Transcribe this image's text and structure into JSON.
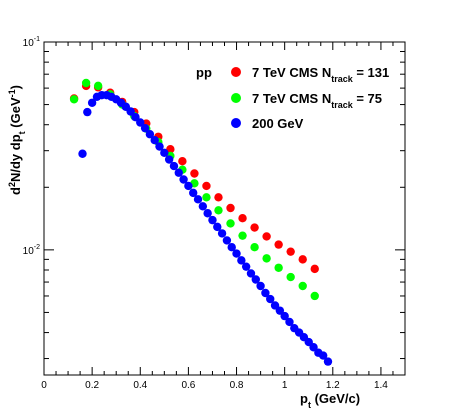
{
  "chart_data": {
    "type": "scatter",
    "title": "",
    "xlabel": {
      "main": "p",
      "sub": "t",
      "rest": " (GeV/c)"
    },
    "ylabel": {
      "t1": "d",
      "sup1": "2",
      "t2": "N/dy dp",
      "sub": "t",
      "t3": " (GeV",
      "sup2": "-1",
      "t4": ")"
    },
    "xlim": [
      0,
      1.5
    ],
    "ylim": [
      0.0025,
      0.1
    ],
    "yscale": "log",
    "x_ticks": [
      {
        "value": 0,
        "label": "0"
      },
      {
        "value": 0.2,
        "label": "0.2"
      },
      {
        "value": 0.4,
        "label": "0.4"
      },
      {
        "value": 0.6,
        "label": "0.6"
      },
      {
        "value": 0.8,
        "label": "0.8"
      },
      {
        "value": 1.0,
        "label": "1"
      },
      {
        "value": 1.2,
        "label": "1.2"
      },
      {
        "value": 1.4,
        "label": "1.4"
      }
    ],
    "y_ticks": [
      {
        "value": 0.1,
        "base": "10",
        "exp": "-1"
      },
      {
        "value": 0.01,
        "base": "10",
        "exp": "-2"
      }
    ],
    "legend_header": "pp",
    "legend_position": "top-right",
    "series": [
      {
        "name_parts": {
          "main": "7 TeV CMS  N",
          "sub": "track",
          "rest": " = 131"
        },
        "color": "#ff0000",
        "points": [
          [
            0.125,
            0.0535
          ],
          [
            0.175,
            0.0615
          ],
          [
            0.225,
            0.0605
          ],
          [
            0.275,
            0.057
          ],
          [
            0.325,
            0.0515
          ],
          [
            0.375,
            0.046
          ],
          [
            0.425,
            0.0405
          ],
          [
            0.475,
            0.035
          ],
          [
            0.525,
            0.0305
          ],
          [
            0.575,
            0.0267
          ],
          [
            0.625,
            0.0233
          ],
          [
            0.675,
            0.0203
          ],
          [
            0.725,
            0.0179
          ],
          [
            0.775,
            0.0159
          ],
          [
            0.825,
            0.0142
          ],
          [
            0.875,
            0.0128
          ],
          [
            0.925,
            0.0116
          ],
          [
            0.975,
            0.0106
          ],
          [
            1.025,
            0.0098
          ],
          [
            1.075,
            0.009
          ],
          [
            1.125,
            0.0081
          ]
        ]
      },
      {
        "name_parts": {
          "main": "7 TeV CMS  N",
          "sub": "track",
          "rest": " = 75"
        },
        "color": "#00ff00",
        "points": [
          [
            0.125,
            0.053
          ],
          [
            0.175,
            0.0635
          ],
          [
            0.225,
            0.0615
          ],
          [
            0.275,
            0.056
          ],
          [
            0.325,
            0.05
          ],
          [
            0.375,
            0.044
          ],
          [
            0.425,
            0.0383
          ],
          [
            0.475,
            0.033
          ],
          [
            0.525,
            0.0283
          ],
          [
            0.575,
            0.0243
          ],
          [
            0.625,
            0.0209
          ],
          [
            0.675,
            0.0179
          ],
          [
            0.725,
            0.0155
          ],
          [
            0.775,
            0.0134
          ],
          [
            0.825,
            0.0117
          ],
          [
            0.875,
            0.0103
          ],
          [
            0.925,
            0.0091
          ],
          [
            0.975,
            0.0082
          ],
          [
            1.025,
            0.0074
          ],
          [
            1.075,
            0.0067
          ],
          [
            1.125,
            0.006
          ]
        ]
      },
      {
        "name_parts": {
          "main": "200 GeV",
          "sub": "",
          "rest": ""
        },
        "color": "#0000ff",
        "points": [
          [
            0.16,
            0.029
          ],
          [
            0.18,
            0.046
          ],
          [
            0.2,
            0.051
          ],
          [
            0.22,
            0.0545
          ],
          [
            0.24,
            0.0555
          ],
          [
            0.26,
            0.0555
          ],
          [
            0.28,
            0.0545
          ],
          [
            0.3,
            0.053
          ],
          [
            0.32,
            0.051
          ],
          [
            0.34,
            0.0488
          ],
          [
            0.36,
            0.0463
          ],
          [
            0.38,
            0.0435
          ],
          [
            0.4,
            0.041
          ],
          [
            0.42,
            0.0385
          ],
          [
            0.44,
            0.036
          ],
          [
            0.46,
            0.0337
          ],
          [
            0.48,
            0.0314
          ],
          [
            0.5,
            0.0293
          ],
          [
            0.52,
            0.0272
          ],
          [
            0.54,
            0.0253
          ],
          [
            0.56,
            0.0235
          ],
          [
            0.58,
            0.0218
          ],
          [
            0.6,
            0.0203
          ],
          [
            0.62,
            0.0188
          ],
          [
            0.64,
            0.0175
          ],
          [
            0.66,
            0.0162
          ],
          [
            0.68,
            0.015
          ],
          [
            0.7,
            0.0139
          ],
          [
            0.72,
            0.0129
          ],
          [
            0.74,
            0.012
          ],
          [
            0.76,
            0.0111
          ],
          [
            0.78,
            0.0103
          ],
          [
            0.8,
            0.0096
          ],
          [
            0.82,
            0.0089
          ],
          [
            0.84,
            0.0083
          ],
          [
            0.86,
            0.0077
          ],
          [
            0.88,
            0.0072
          ],
          [
            0.9,
            0.0067
          ],
          [
            0.92,
            0.0062
          ],
          [
            0.94,
            0.0058
          ],
          [
            0.96,
            0.0054
          ],
          [
            0.98,
            0.0051
          ],
          [
            1.0,
            0.0048
          ],
          [
            1.02,
            0.0045
          ],
          [
            1.04,
            0.0042
          ],
          [
            1.06,
            0.004
          ],
          [
            1.08,
            0.0038
          ],
          [
            1.1,
            0.0036
          ],
          [
            1.12,
            0.0034
          ],
          [
            1.14,
            0.0032
          ],
          [
            1.16,
            0.0031
          ],
          [
            1.18,
            0.0029
          ]
        ]
      }
    ]
  }
}
